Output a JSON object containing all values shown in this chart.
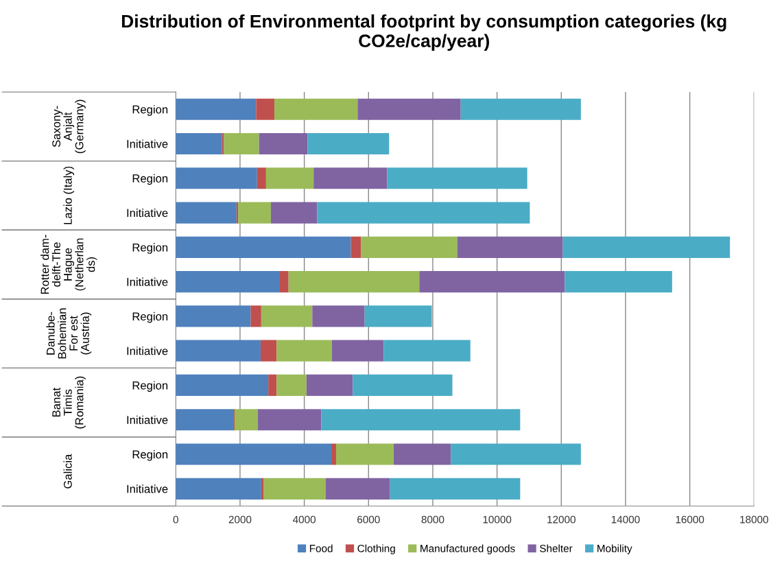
{
  "chart_data": {
    "type": "bar",
    "orientation": "horizontal",
    "stacked": true,
    "title": "Distribution of Environmental footprint by consumption categories (kg CO2e/cap/year)",
    "categories": [
      "Region",
      "Initiative",
      "Region",
      "Initiative",
      "Region",
      "Initiative",
      "Region",
      "Initiative",
      "Region",
      "Initiative",
      "Region",
      "Initiative"
    ],
    "annotations": [
      "Saxony-\nAnjalt\n(Germany)",
      "Lazio (Italy)",
      "Rotter dam-\ndelft-The\nHague\n(Netherlan\nds)",
      "Danube-\nBohemian\nFor est\n(Austria)",
      "Banat\nTimis\n(Romania)",
      "Galicia"
    ],
    "series": [
      {
        "name": "Food",
        "color": "#4f81bd",
        "values": [
          2500,
          1440,
          2530,
          1890,
          5450,
          3220,
          2330,
          2640,
          2880,
          1790,
          4840,
          2660
        ]
      },
      {
        "name": "Clothing",
        "color": "#c0504d",
        "values": [
          570,
          60,
          280,
          50,
          320,
          290,
          330,
          500,
          260,
          40,
          150,
          80
        ]
      },
      {
        "name": "Manufactured goods",
        "color": "#9bbb59",
        "values": [
          2590,
          1090,
          1480,
          1020,
          2990,
          4070,
          1590,
          1720,
          930,
          720,
          1790,
          1920
        ]
      },
      {
        "name": "Shelter",
        "color": "#8064a2",
        "values": [
          3210,
          1510,
          2290,
          1440,
          3290,
          4530,
          1630,
          1610,
          1440,
          1980,
          1780,
          2010
        ]
      },
      {
        "name": "Mobility",
        "color": "#4bacc6",
        "values": [
          3740,
          2540,
          4360,
          6620,
          5200,
          3340,
          2090,
          2700,
          3100,
          6190,
          4050,
          4050
        ]
      }
    ],
    "xlim": [
      0,
      18000
    ],
    "xticks": [
      0,
      2000,
      4000,
      6000,
      8000,
      10000,
      12000,
      14000,
      16000,
      18000
    ],
    "grid": "x",
    "legend": "bottom"
  }
}
